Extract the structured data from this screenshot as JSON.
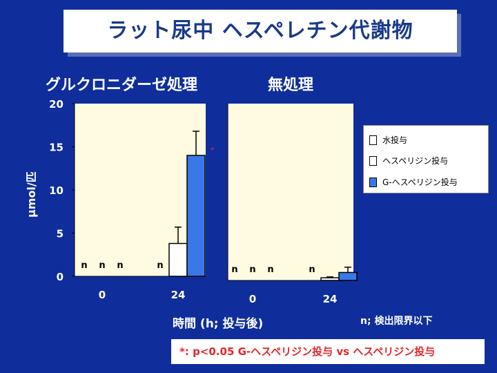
{
  "title": "ラット尿中 ヘスペレチン代謝物",
  "panel_titles": [
    "グルクロニダーゼ処理",
    "無処理"
  ],
  "ylabel": "μmol/匹",
  "xlabel": "時間 (h; 投与後)",
  "y_ticks": [
    "20",
    "15",
    "10",
    "5",
    "0"
  ],
  "x_ticks": [
    "0",
    "24"
  ],
  "nd_label": "n",
  "nd_note": "n; 検出限界以下",
  "significance_marker": "*",
  "significance_note": "*: p<0.05 G-ヘスペリジン投与 vs ヘスペリジン投与",
  "legend": [
    {
      "label": "水投与",
      "color": "#ffffff"
    },
    {
      "label": "ヘスペリジン投与",
      "color": "#ffffff"
    },
    {
      "label": "G-ヘスペリジン投与",
      "color": "#3b78e7"
    }
  ],
  "colors": {
    "background": "#0f2e9c",
    "title_text": "#1a3a8a",
    "bar_highlight": "#3b78e7",
    "note_text": "#e4262a"
  },
  "chart_data": [
    {
      "type": "bar",
      "title": "グルクロニダーゼ処理",
      "categories": [
        "0",
        "24"
      ],
      "ylim": [
        0,
        20
      ],
      "ylabel": "μmol/匹",
      "xlabel": "時間 (h; 投与後)",
      "series": [
        {
          "name": "水投与",
          "values": [
            null,
            null
          ],
          "nd": [
            true,
            true
          ]
        },
        {
          "name": "ヘスペリジン投与",
          "values": [
            null,
            3.8
          ],
          "errors": [
            null,
            1.9
          ],
          "nd": [
            true,
            false
          ]
        },
        {
          "name": "G-ヘスペリジン投与",
          "values": [
            null,
            14.0
          ],
          "errors": [
            null,
            2.8
          ],
          "nd": [
            true,
            false
          ],
          "significant": [
            false,
            true
          ]
        }
      ]
    },
    {
      "type": "bar",
      "title": "無処理",
      "categories": [
        "0",
        "24"
      ],
      "ylim": [
        0,
        20
      ],
      "xlabel": "時間 (h; 投与後)",
      "series": [
        {
          "name": "水投与",
          "values": [
            null,
            null
          ],
          "nd": [
            true,
            true
          ]
        },
        {
          "name": "ヘスペリジン投与",
          "values": [
            null,
            0.3
          ],
          "errors": [
            null,
            0.1
          ],
          "nd": [
            true,
            false
          ]
        },
        {
          "name": "G-ヘスペリジン投与",
          "values": [
            null,
            0.9
          ],
          "errors": [
            null,
            0.6
          ],
          "nd": [
            true,
            false
          ]
        }
      ]
    }
  ]
}
